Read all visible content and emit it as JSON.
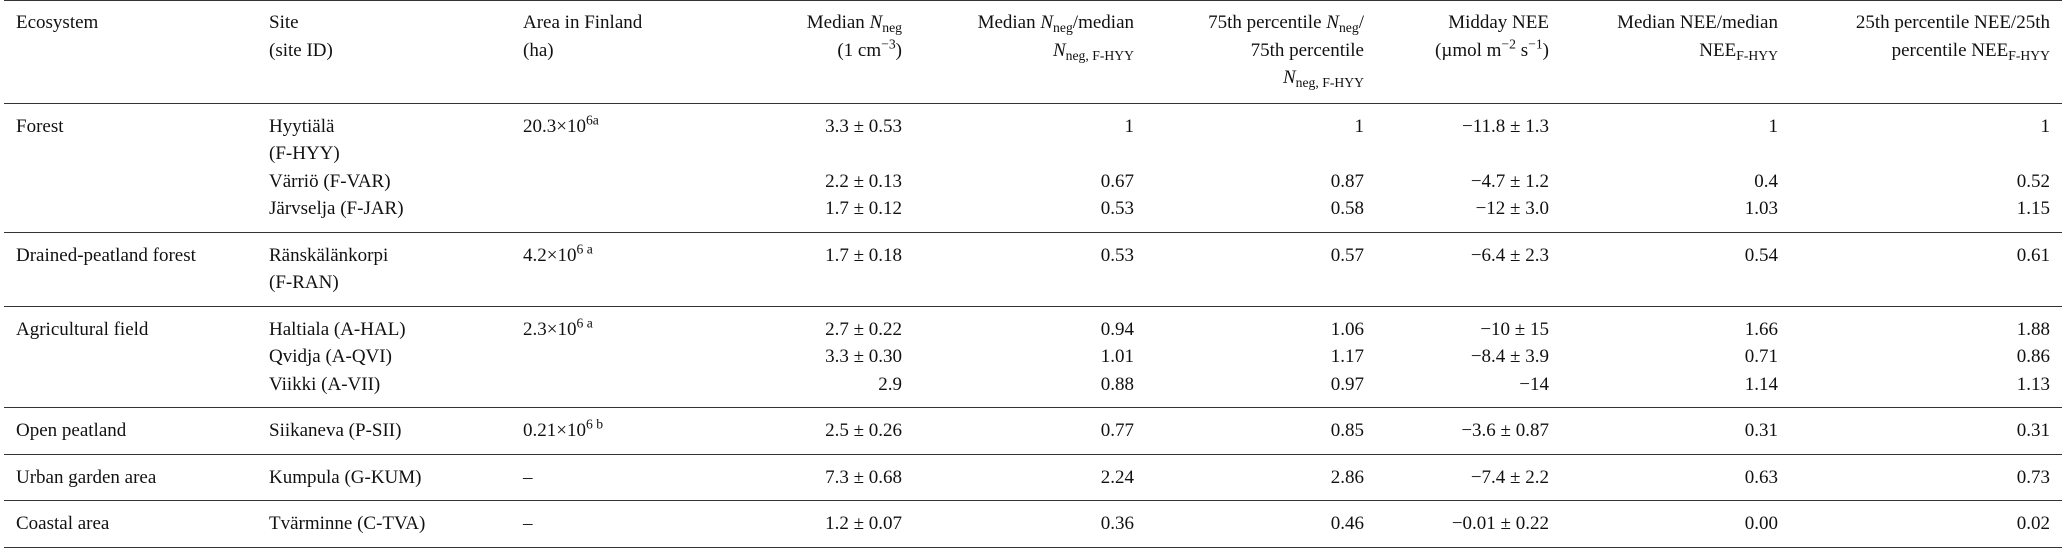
{
  "table": {
    "header": [
      [
        "Ecosystem"
      ],
      [
        "Site",
        "(site ID)"
      ],
      [
        "Area in Finland",
        "(ha)"
      ],
      [
        "Median ",
        "N",
        "neg",
        "(1 cm",
        "−3",
        ")"
      ],
      [
        "Median ",
        "N",
        "neg",
        "/median",
        "N",
        "neg, F-HYY"
      ],
      [
        "75th percentile ",
        "N",
        "neg",
        "/",
        "75th percentile",
        "N",
        "neg, F-HYY"
      ],
      [
        "Midday NEE",
        "(µmol m",
        "−2",
        " s",
        "−1",
        ")"
      ],
      [
        "Median NEE/median",
        "NEE",
        "F-HYY"
      ],
      [
        "25th percentile NEE/25th",
        "percentile NEE",
        "F-HYY"
      ]
    ],
    "groups": [
      {
        "ecosystem": "Forest",
        "area": [
          "20.3×10",
          "6a"
        ],
        "sites": [
          {
            "site": [
              "Hyytiälä",
              "(F-HYY)"
            ],
            "values": [
              "3.3 ± 0.53",
              "1",
              "1",
              "−11.8 ± 1.3",
              "1",
              "1"
            ]
          },
          {
            "site": [
              "Värriö (F-VAR)"
            ],
            "values": [
              "2.2 ± 0.13",
              "0.67",
              "0.87",
              "−4.7 ± 1.2",
              "0.4",
              "0.52"
            ]
          },
          {
            "site": [
              "Järvselja (F-JAR)"
            ],
            "values": [
              "1.7 ± 0.12",
              "0.53",
              "0.58",
              "−12 ± 3.0",
              "1.03",
              "1.15"
            ]
          }
        ]
      },
      {
        "ecosystem": "Drained-peatland forest",
        "area": [
          "4.2×10",
          "6 a"
        ],
        "sites": [
          {
            "site": [
              "Ränskälänkorpi",
              "(F-RAN)"
            ],
            "values": [
              "1.7 ± 0.18",
              "0.53",
              "0.57",
              "−6.4 ± 2.3",
              "0.54",
              "0.61"
            ]
          }
        ]
      },
      {
        "ecosystem": "Agricultural field",
        "area": [
          "2.3×10",
          "6 a"
        ],
        "sites": [
          {
            "site": [
              "Haltiala (A-HAL)"
            ],
            "values": [
              "2.7 ± 0.22",
              "0.94",
              "1.06",
              "−10 ± 15",
              "1.66",
              "1.88"
            ]
          },
          {
            "site": [
              "Qvidja (A-QVI)"
            ],
            "values": [
              "3.3 ± 0.30",
              "1.01",
              "1.17",
              "−8.4 ± 3.9",
              "0.71",
              "0.86"
            ]
          },
          {
            "site": [
              "Viikki (A-VII)"
            ],
            "values": [
              "2.9",
              "0.88",
              "0.97",
              "−14",
              "1.14",
              "1.13"
            ]
          }
        ]
      },
      {
        "ecosystem": "Open peatland",
        "area": [
          "0.21×10",
          "6 b"
        ],
        "sites": [
          {
            "site": [
              "Siikaneva (P-SII)"
            ],
            "values": [
              "2.5 ± 0.26",
              "0.77",
              "0.85",
              "−3.6 ± 0.87",
              "0.31",
              "0.31"
            ]
          }
        ]
      },
      {
        "ecosystem": "Urban garden area",
        "area": [
          "–"
        ],
        "sites": [
          {
            "site": [
              "Kumpula (G-KUM)"
            ],
            "values": [
              "7.3 ± 0.68",
              "2.24",
              "2.86",
              "−7.4 ± 2.2",
              "0.63",
              "0.73"
            ]
          }
        ]
      },
      {
        "ecosystem": "Coastal area",
        "area": [
          "–"
        ],
        "sites": [
          {
            "site": [
              "Tvärminne (C-TVA)"
            ],
            "values": [
              "1.2 ± 0.07",
              "0.36",
              "0.46",
              "−0.01 ± 0.22",
              "0.00",
              "0.02"
            ]
          }
        ]
      }
    ]
  }
}
